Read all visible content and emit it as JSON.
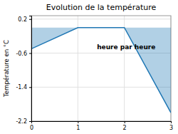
{
  "chart_data": {
    "type": "area",
    "title": "Evolution de la température",
    "xlabel": "heure par heure",
    "ylabel": "Température en °C",
    "x": [
      0,
      0,
      1,
      2,
      3
    ],
    "values": [
      0,
      -0.5,
      0,
      0,
      -2.0
    ],
    "xlim": [
      0,
      3
    ],
    "ylim": [
      -2.2,
      0.28
    ],
    "xticks": [
      0,
      1,
      2,
      3
    ],
    "yticks": [
      0.2,
      -0.6,
      -1.4,
      -2.2
    ],
    "grid": true
  }
}
